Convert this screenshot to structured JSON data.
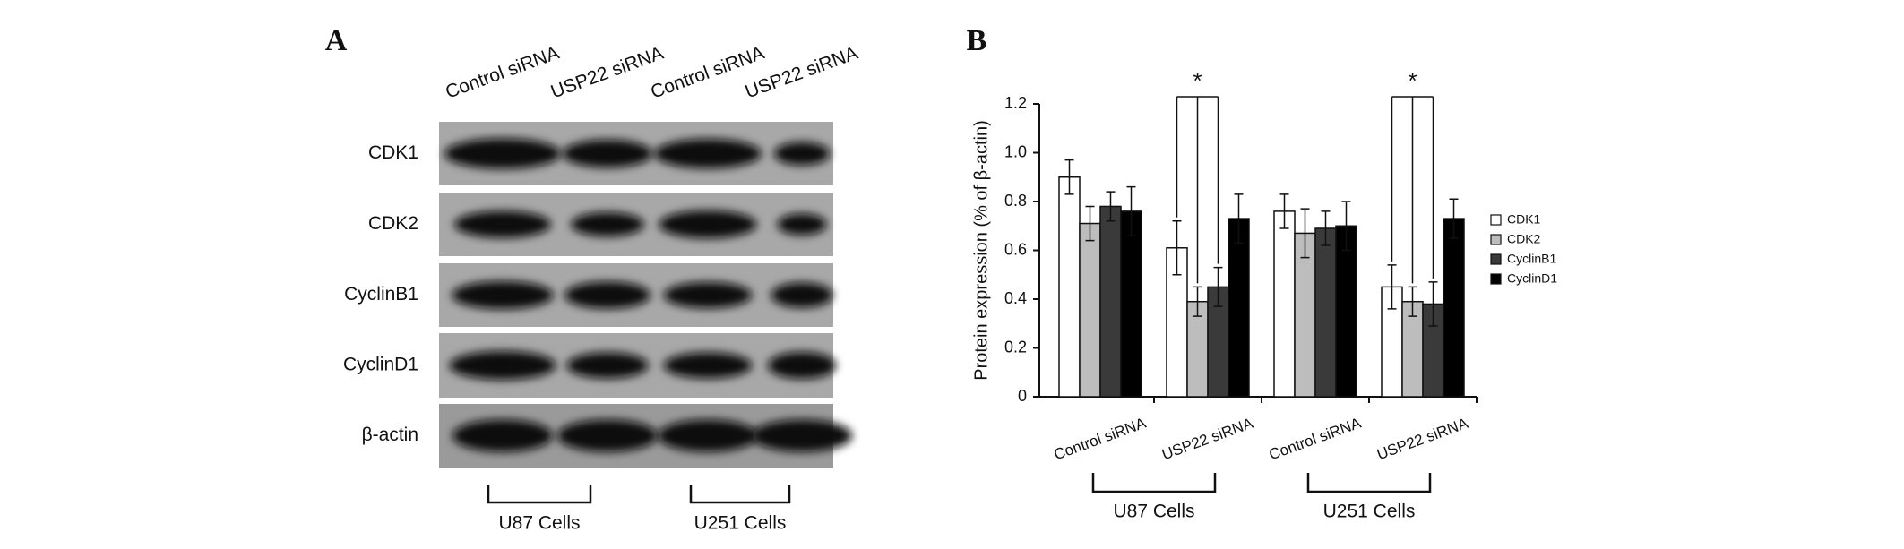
{
  "panel_a": {
    "label": "A",
    "lanes": [
      "Control siRNA",
      "USP22 siRNA",
      "Control siRNA",
      "USP22 siRNA"
    ],
    "rows": [
      "CDK1",
      "CDK2",
      "CyclinB1",
      "CyclinD1",
      "β-actin"
    ],
    "groups": [
      "U87 Cells",
      "U251 Cells"
    ]
  },
  "chart_data": {
    "type": "bar",
    "panel_label": "B",
    "ylabel": "Protein expression (% of β-actin)",
    "categories": [
      "Control siRNA",
      "USP22 siRNA",
      "Control siRNA",
      "USP22 siRNA"
    ],
    "groups": [
      "U87 Cells",
      "U251 Cells"
    ],
    "significance": [
      null,
      "*",
      null,
      "*"
    ],
    "series": [
      {
        "name": "CDK1",
        "color": "#ffffff",
        "values": [
          0.9,
          0.61,
          0.76,
          0.45
        ],
        "errors": [
          0.07,
          0.11,
          0.07,
          0.09
        ]
      },
      {
        "name": "CDK2",
        "color": "#bdbdbd",
        "values": [
          0.71,
          0.39,
          0.67,
          0.39
        ],
        "errors": [
          0.07,
          0.06,
          0.1,
          0.06
        ]
      },
      {
        "name": "CyclinB1",
        "color": "#3a3a3a",
        "values": [
          0.78,
          0.45,
          0.69,
          0.38
        ],
        "errors": [
          0.06,
          0.08,
          0.07,
          0.09
        ]
      },
      {
        "name": "CyclinD1",
        "color": "#000000",
        "values": [
          0.76,
          0.73,
          0.7,
          0.73
        ],
        "errors": [
          0.1,
          0.1,
          0.1,
          0.08
        ]
      }
    ],
    "ylim": [
      0,
      1.2
    ],
    "yticks": [
      0,
      0.2,
      0.4,
      0.6,
      0.8,
      {
        "value": 1,
        "label": "1.0"
      },
      1.2
    ],
    "legend": "right"
  }
}
